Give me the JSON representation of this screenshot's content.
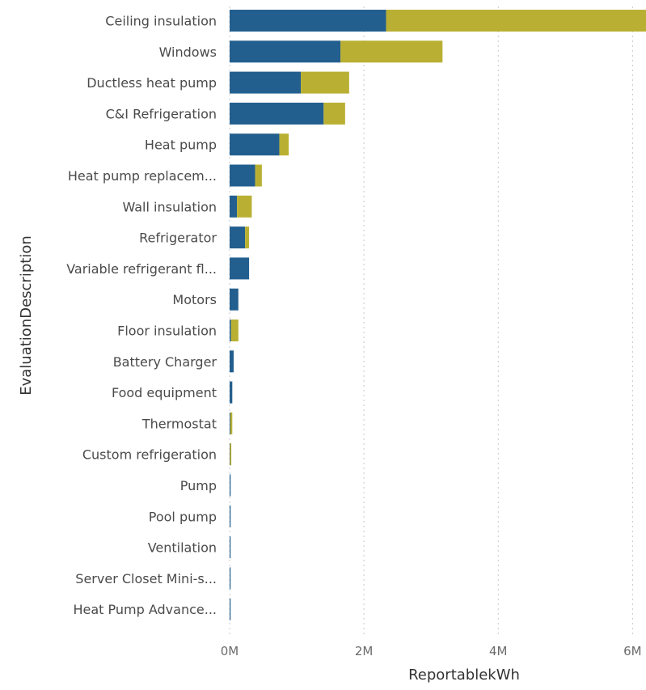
{
  "chart_data": {
    "type": "bar",
    "orientation": "horizontal",
    "stacked": true,
    "xlabel": "ReportablekWh",
    "ylabel": "EvaluationDescription",
    "xlim": [
      0,
      6200000
    ],
    "x_ticks": [
      {
        "value": 0,
        "label": "0M"
      },
      {
        "value": 2000000,
        "label": "2M"
      },
      {
        "value": 4000000,
        "label": "4M"
      },
      {
        "value": 6000000,
        "label": "6M"
      }
    ],
    "grid": "vertical dashed",
    "categories": [
      "Ceiling insulation",
      "Windows",
      "Ductless heat pump",
      "C&I Refrigeration",
      "Heat pump",
      "Heat pump replacem...",
      "Wall insulation",
      "Refrigerator",
      "Variable refrigerant fl...",
      "Motors",
      "Floor insulation",
      "Battery Charger",
      "Food equipment",
      "Thermostat",
      "Custom refrigeration",
      "Pump",
      "Pool pump",
      "Ventilation",
      "Server Closet Mini-s...",
      "Heat Pump Advance..."
    ],
    "series": [
      {
        "color": "#235f8e",
        "values": [
          2330000,
          1650000,
          1060000,
          1400000,
          740000,
          380000,
          110000,
          230000,
          290000,
          130000,
          20000,
          60000,
          40000,
          10000,
          5000,
          15000,
          15000,
          10000,
          5000,
          3000
        ]
      },
      {
        "color": "#b9b033",
        "values": [
          3870000,
          1520000,
          720000,
          320000,
          140000,
          100000,
          220000,
          60000,
          0,
          0,
          110000,
          0,
          0,
          30000,
          20000,
          0,
          0,
          0,
          0,
          0
        ]
      }
    ]
  }
}
